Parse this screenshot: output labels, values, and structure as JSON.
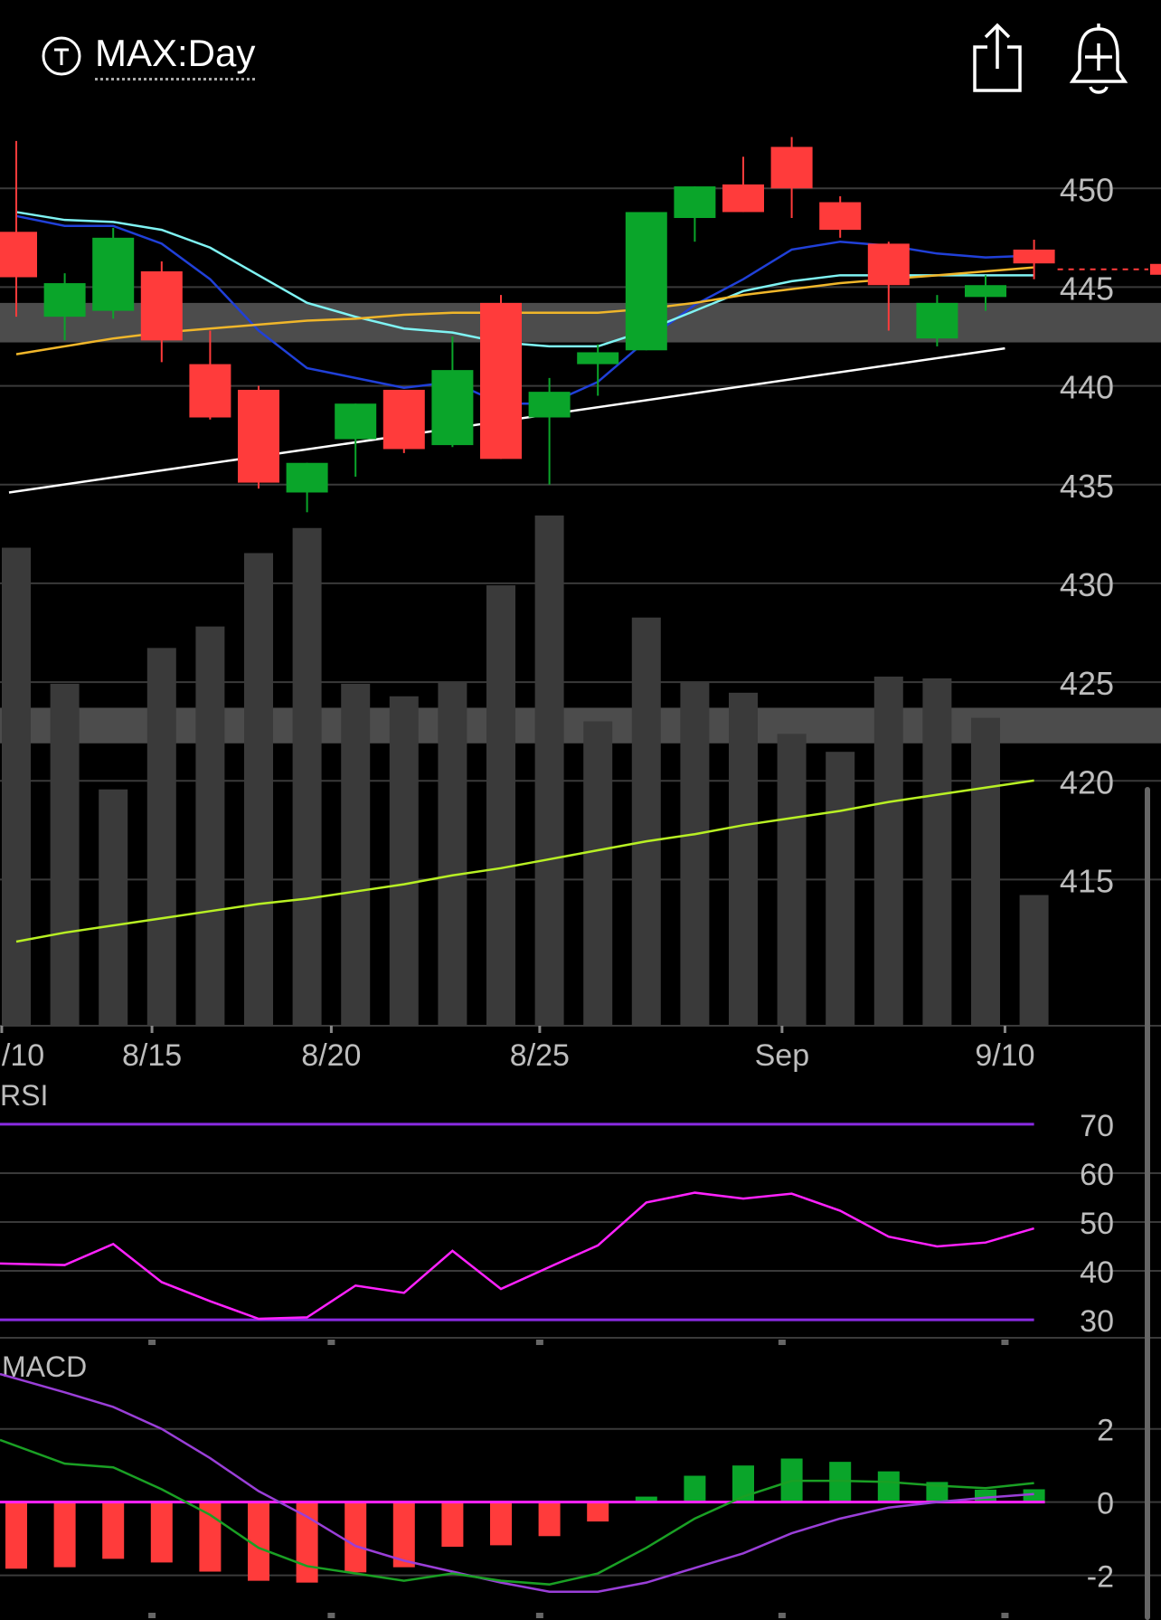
{
  "header": {
    "ticker_icon": "ticker-circle-icon",
    "title": "MAX:Day",
    "share_icon": "share-icon",
    "alert_icon": "bell-plus-icon"
  },
  "colors": {
    "up": "#0aa52a",
    "down": "#ff3b3b",
    "ma_fast": "#2040d8",
    "ma_mid": "#7ff3f3",
    "ma_slow": "#f0b62a",
    "volume_avg": "#b8f024",
    "rsi": "#ff22ff",
    "rsi_bounds": "#8a2be2",
    "macd_signal": "#9a3fd8",
    "macd_line": "#1aa024",
    "trendline": "#ffffff"
  },
  "chart_data": [
    {
      "type": "candlestick",
      "title": "MAX:Day",
      "x_tick_labels": [
        "/10",
        "8/15",
        "8/20",
        "8/25",
        "Sep",
        "9/10"
      ],
      "y_ticks": [
        450,
        445,
        440,
        435,
        430,
        425,
        420,
        415
      ],
      "ylim": [
        407.6,
        454.5
      ],
      "candles": [
        {
          "o": 447.8,
          "h": 452.4,
          "l": 443.5,
          "c": 445.5
        },
        {
          "o": 443.5,
          "h": 445.7,
          "l": 442.3,
          "c": 445.2
        },
        {
          "o": 443.8,
          "h": 448.0,
          "l": 443.4,
          "c": 447.5
        },
        {
          "o": 445.8,
          "h": 446.3,
          "l": 441.2,
          "c": 442.3
        },
        {
          "o": 441.1,
          "h": 442.8,
          "l": 438.3,
          "c": 438.4
        },
        {
          "o": 439.8,
          "h": 440.0,
          "l": 434.8,
          "c": 435.1
        },
        {
          "o": 434.6,
          "h": 436.1,
          "l": 433.6,
          "c": 436.1
        },
        {
          "o": 437.3,
          "h": 439.1,
          "l": 435.4,
          "c": 439.1
        },
        {
          "o": 439.8,
          "h": 439.8,
          "l": 436.6,
          "c": 436.8
        },
        {
          "o": 437.0,
          "h": 442.5,
          "l": 436.9,
          "c": 440.8
        },
        {
          "o": 444.2,
          "h": 444.6,
          "l": 436.3,
          "c": 436.3
        },
        {
          "o": 438.4,
          "h": 440.4,
          "l": 435.0,
          "c": 439.7
        },
        {
          "o": 441.1,
          "h": 442.1,
          "l": 439.5,
          "c": 441.7
        },
        {
          "o": 441.8,
          "h": 448.8,
          "l": 441.8,
          "c": 448.8
        },
        {
          "o": 448.5,
          "h": 450.1,
          "l": 447.3,
          "c": 450.1
        },
        {
          "o": 450.2,
          "h": 451.6,
          "l": 448.8,
          "c": 448.8
        },
        {
          "o": 452.1,
          "h": 452.6,
          "l": 448.5,
          "c": 450.0
        },
        {
          "o": 449.3,
          "h": 449.6,
          "l": 447.5,
          "c": 447.9
        },
        {
          "o": 447.2,
          "h": 447.3,
          "l": 442.8,
          "c": 445.1
        },
        {
          "o": 442.4,
          "h": 444.6,
          "l": 442.0,
          "c": 444.2
        },
        {
          "o": 444.5,
          "h": 445.6,
          "l": 443.8,
          "c": 445.1
        },
        {
          "o": 446.9,
          "h": 447.4,
          "l": 445.4,
          "c": 446.2
        }
      ],
      "last_price": 445.9,
      "moving_averages": [
        {
          "values": [
            448.6,
            448.1,
            448.1,
            447.2,
            445.4,
            442.8,
            440.9,
            440.4,
            439.9,
            440.2,
            439.1,
            439.1,
            440.2,
            442.3,
            444.1,
            445.4,
            446.9,
            447.3,
            447.1,
            446.7,
            446.5,
            446.6
          ]
        },
        {
          "values": [
            448.8,
            448.4,
            448.3,
            447.9,
            447.0,
            445.6,
            444.2,
            443.5,
            442.9,
            442.7,
            442.2,
            442.0,
            442.0,
            442.8,
            443.8,
            444.8,
            445.3,
            445.6,
            445.6,
            445.6,
            445.6,
            445.6
          ]
        },
        {
          "values": [
            441.6,
            442.0,
            442.4,
            442.7,
            442.9,
            443.1,
            443.3,
            443.4,
            443.6,
            443.7,
            443.7,
            443.7,
            443.7,
            443.9,
            444.2,
            444.6,
            444.9,
            445.2,
            445.4,
            445.6,
            445.8,
            446.0
          ]
        }
      ],
      "trendline": {
        "from": [
          -0.15,
          434.6
        ],
        "to": [
          20.4,
          441.9
        ]
      },
      "volume": [
        26.7,
        19.1,
        13.2,
        21.1,
        22.3,
        26.4,
        27.8,
        19.1,
        18.4,
        19.2,
        24.6,
        28.5,
        17.0,
        22.8,
        19.2,
        18.6,
        16.3,
        15.3,
        19.5,
        19.4,
        17.2,
        7.3
      ],
      "volume_avg": [
        4.7,
        5.2,
        5.6,
        6.0,
        6.4,
        6.8,
        7.1,
        7.5,
        7.9,
        8.4,
        8.8,
        9.3,
        9.8,
        10.3,
        10.7,
        11.2,
        11.6,
        12.0,
        12.5,
        12.9,
        13.3,
        13.7
      ]
    },
    {
      "type": "line",
      "title": "RSI",
      "y_ticks": [
        70,
        60,
        50,
        40,
        30
      ],
      "ylim": [
        26.5,
        73.5
      ],
      "bounds": [
        70,
        30
      ],
      "values": [
        41.5,
        41.2,
        45.5,
        37.7,
        33.8,
        30.2,
        30.5,
        37.0,
        35.5,
        44.1,
        36.3,
        40.8,
        45.2,
        54.0,
        56.0,
        54.8,
        55.8,
        52.3,
        47.0,
        45.0,
        45.8,
        48.7
      ]
    },
    {
      "type": "bar",
      "title": "MACD",
      "y_ticks": [
        2,
        0,
        -2
      ],
      "ylim": [
        -2.95,
        3.6
      ],
      "histogram": [
        -1.82,
        -1.78,
        -1.55,
        -1.65,
        -1.9,
        -2.15,
        -2.2,
        -1.92,
        -1.78,
        -1.22,
        -1.18,
        -0.93,
        -0.53,
        0.15,
        0.72,
        1.0,
        1.19,
        1.1,
        0.84,
        0.55,
        0.34,
        0.35
      ],
      "signal": [
        3.5,
        3.0,
        2.6,
        2.0,
        1.2,
        0.3,
        -0.4,
        -1.2,
        -1.6,
        -1.9,
        -2.2,
        -2.45,
        -2.45,
        -2.2,
        -1.8,
        -1.4,
        -0.85,
        -0.45,
        -0.15,
        0.0,
        0.12,
        0.22
      ],
      "macd_line": [
        1.7,
        1.05,
        0.95,
        0.35,
        -0.35,
        -1.25,
        -1.75,
        -1.95,
        -2.15,
        -1.95,
        -2.15,
        -2.25,
        -1.95,
        -1.25,
        -0.45,
        0.15,
        0.58,
        0.58,
        0.55,
        0.45,
        0.38,
        0.52
      ]
    }
  ]
}
